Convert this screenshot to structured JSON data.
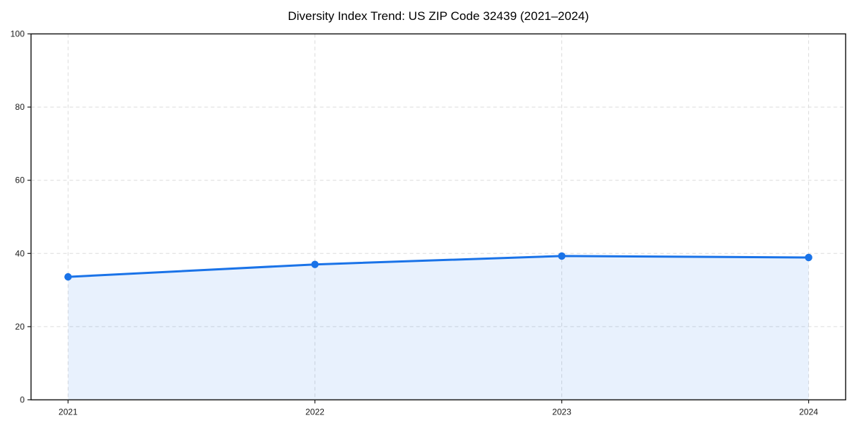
{
  "chart_data": {
    "type": "area",
    "title": "Diversity Index Trend: US ZIP Code 32439 (2021–2024)",
    "x": [
      2021,
      2022,
      2023,
      2024
    ],
    "values": [
      33.6,
      37.0,
      39.3,
      38.9
    ],
    "xtick_labels": [
      "2021",
      "2022",
      "2023",
      "2024"
    ],
    "yticks": [
      0,
      20,
      40,
      60,
      80,
      100
    ],
    "ylim": [
      0,
      100
    ],
    "xlabel": "",
    "ylabel": "",
    "x_margin_frac": 0.05,
    "grid": true,
    "grid_style": "dashed",
    "legend": false,
    "marker": "circle",
    "colors": {
      "line": "#1a73e8",
      "marker": "#1a73e8",
      "fill": "#1a73e8",
      "fill_opacity": 0.1,
      "grid": "#dcdcdc",
      "spine": "#1a1a1a",
      "tick_label": "#1a1a1a",
      "title": "#000000",
      "background": "#ffffff"
    }
  }
}
